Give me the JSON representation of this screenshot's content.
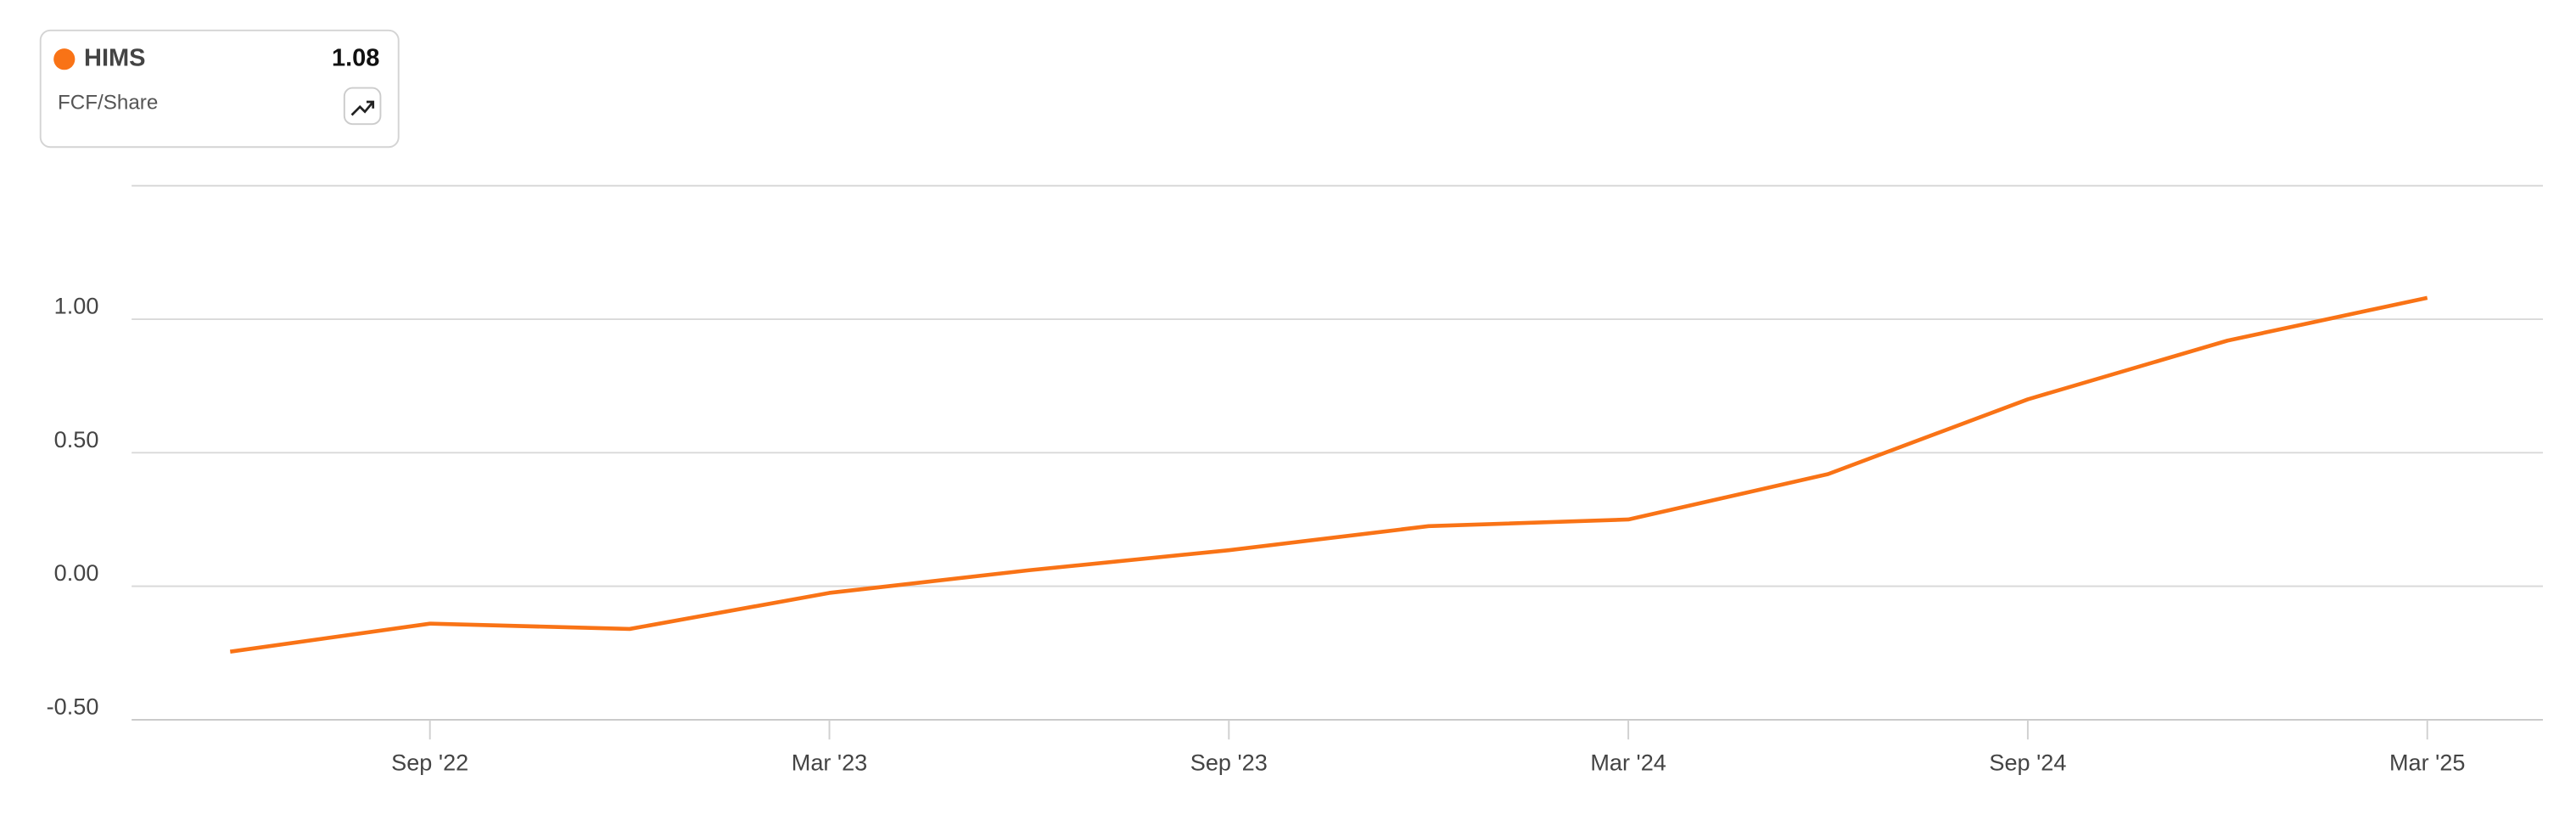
{
  "chart_data": {
    "type": "line",
    "ylabel": "FCF/Share",
    "categories": [
      null,
      "Sep '22",
      null,
      "Mar '23",
      null,
      "Sep '23",
      null,
      "Mar '24",
      null,
      "Sep '24",
      null,
      "Mar '25"
    ],
    "series": [
      {
        "name": "HIMS",
        "color": "#f97316",
        "values": [
          -0.245,
          -0.14,
          -0.16,
          -0.025,
          0.06,
          0.135,
          0.225,
          0.25,
          0.42,
          0.7,
          0.92,
          1.08
        ]
      }
    ],
    "ylim": [
      -0.5,
      1.5
    ],
    "yticks": [
      {
        "value": -0.5,
        "label": "-0.50"
      },
      {
        "value": 0,
        "label": "0.00"
      },
      {
        "value": 0.5,
        "label": "0.50"
      },
      {
        "value": 1,
        "label": "1.00"
      }
    ],
    "grid": true
  }
}
